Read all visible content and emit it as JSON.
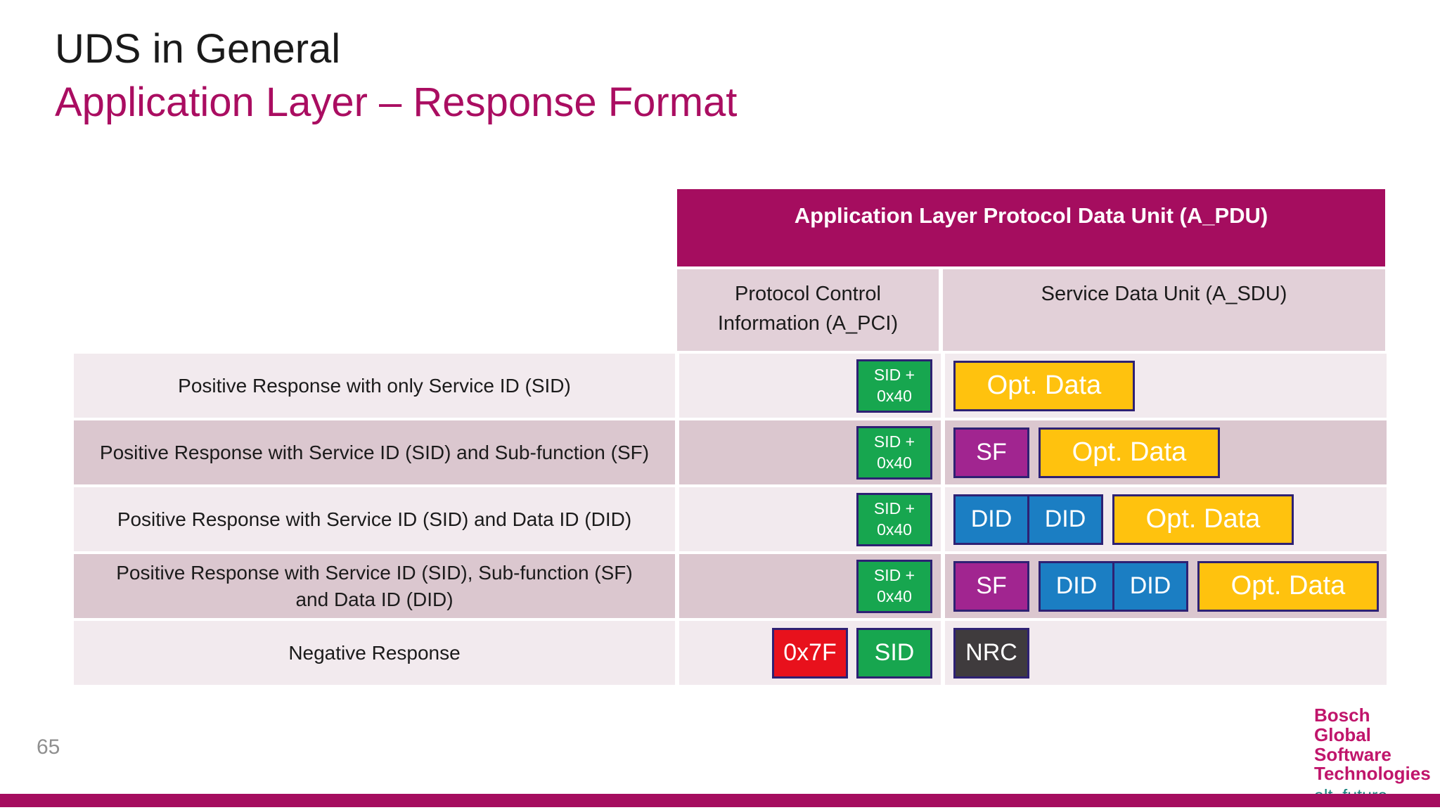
{
  "slide": {
    "title": "UDS in General",
    "subtitle": "Application Layer – Response Format",
    "page_number": "65"
  },
  "table": {
    "header": "Application Layer Protocol Data Unit (A_PDU)",
    "col_pci": "Protocol Control Information (A_PCI)",
    "col_sdu": "Service Data Unit (A_SDU)",
    "rows": [
      {
        "label": "Positive Response with only Service ID (SID)",
        "pci": [
          {
            "name": "sid-plus-0x40-box",
            "lines": [
              "SID +",
              "0x40"
            ],
            "color": "green",
            "size": "code"
          }
        ],
        "sdu": [
          {
            "name": "opt-data-box",
            "lines": [
              "Opt. Data"
            ],
            "color": "yellow",
            "size": "wide"
          }
        ]
      },
      {
        "label": "Positive Response with Service ID (SID) and Sub-function (SF)",
        "pci": [
          {
            "name": "sid-plus-0x40-box",
            "lines": [
              "SID +",
              "0x40"
            ],
            "color": "green",
            "size": "code"
          }
        ],
        "sdu": [
          {
            "name": "sf-box",
            "lines": [
              "SF"
            ],
            "color": "purple",
            "size": "narrow"
          },
          {
            "name": "opt-data-box",
            "lines": [
              "Opt. Data"
            ],
            "color": "yellow",
            "size": "wide"
          }
        ]
      },
      {
        "label": "Positive Response with Service ID (SID) and Data ID (DID)",
        "pci": [
          {
            "name": "sid-plus-0x40-box",
            "lines": [
              "SID +",
              "0x40"
            ],
            "color": "green",
            "size": "code"
          }
        ],
        "sdu": [
          {
            "name": "did-box",
            "lines": [
              "DID"
            ],
            "color": "blue",
            "size": "narrow"
          },
          {
            "name": "did-box",
            "lines": [
              "DID"
            ],
            "color": "blue",
            "size": "narrow",
            "attach": true
          },
          {
            "name": "opt-data-box",
            "lines": [
              "Opt. Data"
            ],
            "color": "yellow",
            "size": "wide"
          }
        ]
      },
      {
        "label": "Positive Response with Service ID (SID), Sub-function (SF) and Data ID (DID)",
        "pci": [
          {
            "name": "sid-plus-0x40-box",
            "lines": [
              "SID +",
              "0x40"
            ],
            "color": "green",
            "size": "code"
          }
        ],
        "sdu": [
          {
            "name": "sf-box",
            "lines": [
              "SF"
            ],
            "color": "purple",
            "size": "narrow"
          },
          {
            "name": "did-box",
            "lines": [
              "DID"
            ],
            "color": "blue",
            "size": "narrow"
          },
          {
            "name": "did-box",
            "lines": [
              "DID"
            ],
            "color": "blue",
            "size": "narrow",
            "attach": true
          },
          {
            "name": "opt-data-box",
            "lines": [
              "Opt. Data"
            ],
            "color": "yellow",
            "size": "wide"
          }
        ]
      },
      {
        "label": "Negative Response",
        "pci": [
          {
            "name": "0x7f-box",
            "lines": [
              "0x7F"
            ],
            "color": "red",
            "size": "narrow"
          },
          {
            "name": "sid-box",
            "lines": [
              "SID"
            ],
            "color": "green",
            "size": "narrow"
          }
        ],
        "sdu": [
          {
            "name": "nrc-box",
            "lines": [
              "NRC"
            ],
            "color": "dark",
            "size": "narrow"
          }
        ]
      }
    ]
  },
  "logo": {
    "lines": [
      "Bosch",
      "Global",
      "Software",
      "Technologies"
    ],
    "tagline": "alt_future"
  },
  "colors": {
    "accent_magenta": "#A50D5F",
    "green": "#17A64F",
    "yellow": "#FFC20E",
    "purple": "#A12590",
    "blue": "#1B7EC3",
    "red": "#E8111C",
    "dark": "#3F3B3D",
    "box_border": "#2E2173",
    "logo_magenta": "#C0156B",
    "logo_teal": "#18837E"
  }
}
